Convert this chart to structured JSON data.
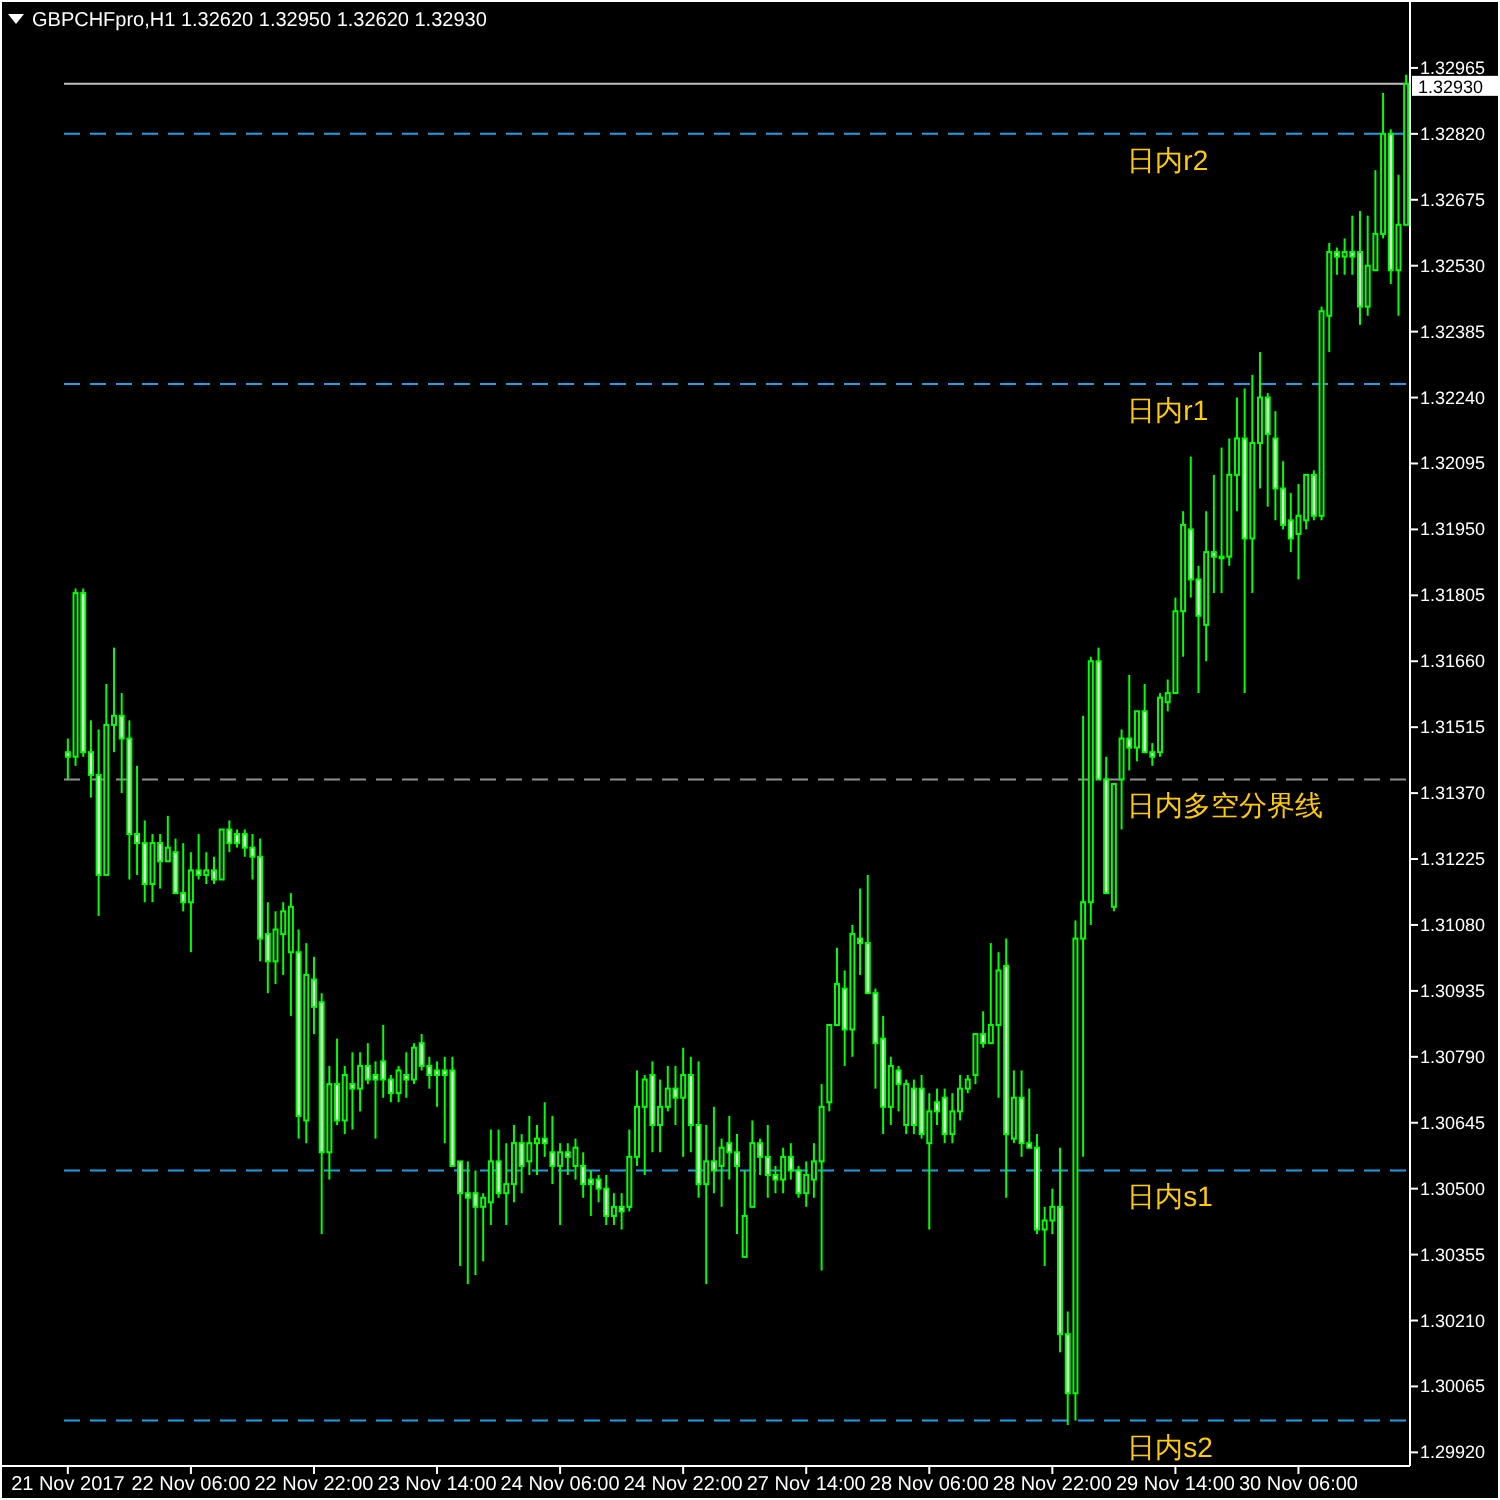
{
  "chart_data": {
    "type": "candlestick",
    "title": "GBPCHFpro,H1  1.32620 1.32950 1.32620 1.32930",
    "color": "#00ff00",
    "categories": [
      "21 Nov 2017",
      null,
      null,
      null,
      null,
      null,
      null,
      null,
      null,
      null,
      null,
      null,
      null,
      null,
      null,
      null,
      "22 Nov 06:00",
      null,
      null,
      null,
      null,
      null,
      null,
      null,
      null,
      null,
      null,
      null,
      null,
      null,
      null,
      null,
      "22 Nov 22:00",
      null,
      null,
      null,
      null,
      null,
      null,
      null,
      null,
      null,
      null,
      null,
      null,
      null,
      null,
      null,
      "23 Nov 14:00",
      null,
      null,
      null,
      null,
      null,
      null,
      null,
      null,
      null,
      null,
      null,
      null,
      null,
      null,
      null,
      "24 Nov 06:00",
      null,
      null,
      null,
      null,
      null,
      null,
      null,
      null,
      null,
      null,
      null,
      null,
      null,
      null,
      null,
      "24 Nov 22:00",
      null,
      null,
      null,
      null,
      null,
      null,
      null,
      null,
      null,
      null,
      null,
      null,
      null,
      null,
      null,
      "27 Nov 14:00",
      null,
      null,
      null,
      null,
      null,
      null,
      null,
      null,
      null,
      null,
      null,
      null,
      null,
      null,
      null,
      "28 Nov 06:00",
      null,
      null,
      null,
      null,
      null,
      null,
      null,
      null,
      null,
      null,
      null,
      null,
      null,
      null,
      null,
      "28 Nov 22:00",
      null,
      null,
      null,
      null,
      null,
      null,
      null,
      null,
      null,
      null,
      null,
      null,
      null,
      null,
      null,
      "29 Nov 14:00",
      null,
      null,
      null,
      null,
      null,
      null,
      null,
      null,
      null,
      null,
      null,
      null,
      null,
      null,
      null,
      "30 Nov 06:00",
      null,
      null,
      null,
      null,
      null,
      null,
      null,
      null,
      null,
      null,
      null,
      null,
      null,
      null
    ],
    "ohlc": [
      [
        1.3146,
        1.3149,
        1.314,
        1.3145
      ],
      [
        1.3145,
        1.3182,
        1.3143,
        1.3181
      ],
      [
        1.3181,
        1.3182,
        1.3145,
        1.3146
      ],
      [
        1.3146,
        1.3153,
        1.3136,
        1.3141
      ],
      [
        1.3141,
        1.3151,
        1.311,
        1.3119
      ],
      [
        1.3119,
        1.3161,
        1.3119,
        1.3152
      ],
      [
        1.3152,
        1.3169,
        1.3146,
        1.3154
      ],
      [
        1.3154,
        1.3159,
        1.3137,
        1.3149
      ],
      [
        1.3149,
        1.3153,
        1.3118,
        1.3128
      ],
      [
        1.3128,
        1.3143,
        1.3119,
        1.3126
      ],
      [
        1.3126,
        1.3131,
        1.3113,
        1.3117
      ],
      [
        1.3117,
        1.3128,
        1.3113,
        1.3126
      ],
      [
        1.3126,
        1.3128,
        1.3116,
        1.3122
      ],
      [
        1.3122,
        1.3132,
        1.3122,
        1.3125
      ],
      [
        1.3124,
        1.3127,
        1.3115,
        1.3115
      ],
      [
        1.3115,
        1.3126,
        1.3111,
        1.3113
      ],
      [
        1.3113,
        1.3124,
        1.3102,
        1.312
      ],
      [
        1.312,
        1.3128,
        1.3118,
        1.3119
      ],
      [
        1.3119,
        1.3124,
        1.3117,
        1.312
      ],
      [
        1.312,
        1.3123,
        1.3117,
        1.3118
      ],
      [
        1.3118,
        1.3129,
        1.3118,
        1.3129
      ],
      [
        1.3129,
        1.3131,
        1.3124,
        1.3126
      ],
      [
        1.3128,
        1.3129,
        1.3125,
        1.3126
      ],
      [
        1.3128,
        1.3129,
        1.3123,
        1.3125
      ],
      [
        1.3125,
        1.3128,
        1.3118,
        1.3123
      ],
      [
        1.3123,
        1.3127,
        1.31,
        1.3105
      ],
      [
        1.3106,
        1.3113,
        1.3093,
        1.31
      ],
      [
        1.31,
        1.3111,
        1.3095,
        1.3107
      ],
      [
        1.3106,
        1.3113,
        1.3097,
        1.3111
      ],
      [
        1.3102,
        1.3115,
        1.3088,
        1.3112
      ],
      [
        1.3102,
        1.3107,
        1.3061,
        1.3066
      ],
      [
        1.3065,
        1.3104,
        1.306,
        1.3097
      ],
      [
        1.3096,
        1.3101,
        1.3084,
        1.309
      ],
      [
        1.3091,
        1.3093,
        1.304,
        1.3058
      ],
      [
        1.3058,
        1.3077,
        1.3052,
        1.3073
      ],
      [
        1.3073,
        1.3083,
        1.3064,
        1.3065
      ],
      [
        1.3065,
        1.3077,
        1.3062,
        1.3075
      ],
      [
        1.3073,
        1.308,
        1.3063,
        1.3072
      ],
      [
        1.3072,
        1.308,
        1.3067,
        1.3077
      ],
      [
        1.3077,
        1.3082,
        1.3073,
        1.3074
      ],
      [
        1.3075,
        1.3078,
        1.3061,
        1.3074
      ],
      [
        1.3078,
        1.3086,
        1.307,
        1.3074
      ],
      [
        1.3074,
        1.3075,
        1.3069,
        1.3071
      ],
      [
        1.3071,
        1.3077,
        1.3069,
        1.3076
      ],
      [
        1.3075,
        1.308,
        1.307,
        1.3074
      ],
      [
        1.3074,
        1.3082,
        1.3073,
        1.3081
      ],
      [
        1.3082,
        1.3084,
        1.3076,
        1.3077
      ],
      [
        1.3077,
        1.3079,
        1.3072,
        1.3075
      ],
      [
        1.3076,
        1.3078,
        1.3068,
        1.3075
      ],
      [
        1.3076,
        1.3079,
        1.306,
        1.3075
      ],
      [
        1.3076,
        1.3079,
        1.3055,
        1.3055
      ],
      [
        1.3056,
        1.3056,
        1.3033,
        1.3049
      ],
      [
        1.3049,
        1.3056,
        1.3029,
        1.3048
      ],
      [
        1.3049,
        1.3054,
        1.3031,
        1.3046
      ],
      [
        1.3046,
        1.3049,
        1.3034,
        1.3048
      ],
      [
        1.3047,
        1.3063,
        1.3042,
        1.3056
      ],
      [
        1.3056,
        1.3063,
        1.3048,
        1.3049
      ],
      [
        1.3049,
        1.306,
        1.3042,
        1.3051
      ],
      [
        1.3051,
        1.3064,
        1.3047,
        1.306
      ],
      [
        1.306,
        1.3062,
        1.3049,
        1.3055
      ],
      [
        1.3056,
        1.3066,
        1.3053,
        1.306
      ],
      [
        1.306,
        1.3064,
        1.3053,
        1.3061
      ],
      [
        1.3061,
        1.3069,
        1.3057,
        1.306
      ],
      [
        1.3058,
        1.3066,
        1.3051,
        1.3055
      ],
      [
        1.3055,
        1.306,
        1.3042,
        1.3058
      ],
      [
        1.3058,
        1.306,
        1.3053,
        1.3057
      ],
      [
        1.3055,
        1.3061,
        1.3052,
        1.3059
      ],
      [
        1.3055,
        1.3058,
        1.3048,
        1.3051
      ],
      [
        1.3052,
        1.3054,
        1.3044,
        1.3051
      ],
      [
        1.3052,
        1.3053,
        1.3047,
        1.305
      ],
      [
        1.305,
        1.3053,
        1.3042,
        1.3044
      ],
      [
        1.3044,
        1.3049,
        1.3042,
        1.3046
      ],
      [
        1.3046,
        1.3049,
        1.3041,
        1.3045
      ],
      [
        1.3046,
        1.3063,
        1.3045,
        1.3057
      ],
      [
        1.3057,
        1.3076,
        1.3055,
        1.3068
      ],
      [
        1.3068,
        1.3075,
        1.3053,
        1.3074
      ],
      [
        1.3075,
        1.3078,
        1.3058,
        1.3064
      ],
      [
        1.3064,
        1.3074,
        1.3058,
        1.3068
      ],
      [
        1.3068,
        1.3077,
        1.3067,
        1.3072
      ],
      [
        1.3072,
        1.3077,
        1.3064,
        1.307
      ],
      [
        1.307,
        1.3081,
        1.3057,
        1.3075
      ],
      [
        1.3075,
        1.3079,
        1.3058,
        1.3064
      ],
      [
        1.3064,
        1.3078,
        1.3048,
        1.3051
      ],
      [
        1.3051,
        1.3064,
        1.3029,
        1.3056
      ],
      [
        1.3056,
        1.3068,
        1.3049,
        1.3054
      ],
      [
        1.3055,
        1.3061,
        1.3046,
        1.3059
      ],
      [
        1.306,
        1.3066,
        1.3052,
        1.3058
      ],
      [
        1.3058,
        1.3062,
        1.304,
        1.3055
      ],
      [
        1.3035,
        1.3054,
        1.3035,
        1.3044
      ],
      [
        1.3046,
        1.3065,
        1.3046,
        1.306
      ],
      [
        1.306,
        1.3061,
        1.3053,
        1.3057
      ],
      [
        1.3057,
        1.3064,
        1.3048,
        1.3053
      ],
      [
        1.3053,
        1.3055,
        1.3049,
        1.3052
      ],
      [
        1.3052,
        1.3059,
        1.3049,
        1.3057
      ],
      [
        1.3057,
        1.306,
        1.3052,
        1.3054
      ],
      [
        1.3054,
        1.3055,
        1.3048,
        1.3049
      ],
      [
        1.3049,
        1.3056,
        1.3046,
        1.3053
      ],
      [
        1.3052,
        1.306,
        1.3048,
        1.3056
      ],
      [
        1.3056,
        1.3073,
        1.3032,
        1.3068
      ],
      [
        1.3069,
        1.3086,
        1.3067,
        1.3086
      ],
      [
        1.3086,
        1.3103,
        1.3086,
        1.3095
      ],
      [
        1.3094,
        1.3098,
        1.3077,
        1.3085
      ],
      [
        1.3085,
        1.3108,
        1.3079,
        1.3106
      ],
      [
        1.3105,
        1.3116,
        1.3097,
        1.3104
      ],
      [
        1.3104,
        1.3119,
        1.3093,
        1.3093
      ],
      [
        1.3093,
        1.3094,
        1.3072,
        1.3082
      ],
      [
        1.3083,
        1.3088,
        1.3062,
        1.3068
      ],
      [
        1.3068,
        1.3079,
        1.3064,
        1.3077
      ],
      [
        1.3076,
        1.3077,
        1.3067,
        1.3073
      ],
      [
        1.3064,
        1.3074,
        1.3062,
        1.3073
      ],
      [
        1.3072,
        1.3074,
        1.3062,
        1.3064
      ],
      [
        1.3072,
        1.3075,
        1.3061,
        1.3062
      ],
      [
        1.306,
        1.3071,
        1.3041,
        1.3067
      ],
      [
        1.3069,
        1.3072,
        1.3064,
        1.3067
      ],
      [
        1.307,
        1.3072,
        1.306,
        1.3062
      ],
      [
        1.3062,
        1.3071,
        1.306,
        1.3067
      ],
      [
        1.3067,
        1.3075,
        1.3065,
        1.3072
      ],
      [
        1.3072,
        1.3075,
        1.3071,
        1.3074
      ],
      [
        1.3075,
        1.3084,
        1.3073,
        1.3084
      ],
      [
        1.3084,
        1.3089,
        1.3081,
        1.3082
      ],
      [
        1.3082,
        1.3104,
        1.3082,
        1.3086
      ],
      [
        1.3086,
        1.3102,
        1.307,
        1.3098
      ],
      [
        1.3099,
        1.3105,
        1.3048,
        1.3062
      ],
      [
        1.3061,
        1.3076,
        1.306,
        1.307
      ],
      [
        1.307,
        1.3076,
        1.3057,
        1.306
      ],
      [
        1.306,
        1.3072,
        1.3059,
        1.3059
      ],
      [
        1.3059,
        1.3062,
        1.304,
        1.3041
      ],
      [
        1.3041,
        1.3046,
        1.3033,
        1.3043
      ],
      [
        1.3043,
        1.305,
        1.304,
        1.3046
      ],
      [
        1.3046,
        1.3059,
        1.3014,
        1.3018
      ],
      [
        1.3018,
        1.3023,
        1.2998,
        1.3005
      ],
      [
        1.3005,
        1.3109,
        1.2999,
        1.3105
      ],
      [
        1.3105,
        1.3154,
        1.3057,
        1.3113
      ],
      [
        1.3113,
        1.3167,
        1.3108,
        1.3166
      ],
      [
        1.3166,
        1.3169,
        1.314,
        1.314
      ],
      [
        1.314,
        1.3145,
        1.3115,
        1.3115
      ],
      [
        1.3112,
        1.3139,
        1.3111,
        1.3139
      ],
      [
        1.314,
        1.3151,
        1.3129,
        1.3149
      ],
      [
        1.3149,
        1.3163,
        1.3142,
        1.3147
      ],
      [
        1.3147,
        1.3155,
        1.3144,
        1.3155
      ],
      [
        1.3155,
        1.3161,
        1.3146,
        1.3146
      ],
      [
        1.3146,
        1.3148,
        1.3143,
        1.3145
      ],
      [
        1.3146,
        1.3159,
        1.3145,
        1.3158
      ],
      [
        1.3157,
        1.3162,
        1.3155,
        1.3159
      ],
      [
        1.3159,
        1.318,
        1.3159,
        1.3177
      ],
      [
        1.3177,
        1.3199,
        1.3167,
        1.3196
      ],
      [
        1.3195,
        1.3211,
        1.318,
        1.3184
      ],
      [
        1.3184,
        1.3187,
        1.3159,
        1.3176
      ],
      [
        1.3174,
        1.3199,
        1.3166,
        1.319
      ],
      [
        1.319,
        1.3207,
        1.3181,
        1.3189
      ],
      [
        1.3189,
        1.3213,
        1.3181,
        1.3189
      ],
      [
        1.3189,
        1.3215,
        1.3187,
        1.3207
      ],
      [
        1.3207,
        1.3224,
        1.3199,
        1.3215
      ],
      [
        1.3215,
        1.3226,
        1.3159,
        1.3193
      ],
      [
        1.3193,
        1.3229,
        1.3181,
        1.3214
      ],
      [
        1.3214,
        1.3234,
        1.3204,
        1.3224
      ],
      [
        1.3224,
        1.3225,
        1.32,
        1.3216
      ],
      [
        1.3215,
        1.3221,
        1.3197,
        1.3204
      ],
      [
        1.3204,
        1.321,
        1.3195,
        1.3196
      ],
      [
        1.3197,
        1.3203,
        1.319,
        1.3193
      ],
      [
        1.3194,
        1.3205,
        1.3184,
        1.3198
      ],
      [
        1.3197,
        1.3207,
        1.3195,
        1.3207
      ],
      [
        1.3207,
        1.3208,
        1.3197,
        1.3198
      ],
      [
        1.3198,
        1.3244,
        1.3197,
        1.3243
      ],
      [
        1.3242,
        1.3258,
        1.3234,
        1.3256
      ],
      [
        1.3256,
        1.3257,
        1.3251,
        1.3255
      ],
      [
        1.3255,
        1.3259,
        1.3251,
        1.3256
      ],
      [
        1.3256,
        1.3264,
        1.3251,
        1.3255
      ],
      [
        1.3256,
        1.3265,
        1.324,
        1.3244
      ],
      [
        1.3244,
        1.3264,
        1.3242,
        1.3253
      ],
      [
        1.3252,
        1.3274,
        1.3252,
        1.326
      ],
      [
        1.326,
        1.3291,
        1.3259,
        1.3282
      ],
      [
        1.3282,
        1.3283,
        1.3249,
        1.3252
      ],
      [
        1.3252,
        1.3273,
        1.3242,
        1.3262
      ],
      [
        1.3262,
        1.3295,
        1.3262,
        1.3293
      ]
    ],
    "ylim": [
      1.2989,
      1.3311
    ],
    "yticks": [
      {
        "value": 1.32965,
        "label": "1.32965"
      },
      {
        "value": 1.3282,
        "label": "1.32820"
      },
      {
        "value": 1.32675,
        "label": "1.32675"
      },
      {
        "value": 1.3253,
        "label": "1.32530"
      },
      {
        "value": 1.32385,
        "label": "1.32385"
      },
      {
        "value": 1.3224,
        "label": "1.32240"
      },
      {
        "value": 1.32095,
        "label": "1.32095"
      },
      {
        "value": 1.3195,
        "label": "1.31950"
      },
      {
        "value": 1.31805,
        "label": "1.31805"
      },
      {
        "value": 1.3166,
        "label": "1.31660"
      },
      {
        "value": 1.31515,
        "label": "1.31515"
      },
      {
        "value": 1.3137,
        "label": "1.31370"
      },
      {
        "value": 1.31225,
        "label": "1.31225"
      },
      {
        "value": 1.3108,
        "label": "1.31080"
      },
      {
        "value": 1.30935,
        "label": "1.30935"
      },
      {
        "value": 1.3079,
        "label": "1.30790"
      },
      {
        "value": 1.30645,
        "label": "1.30645"
      },
      {
        "value": 1.305,
        "label": "1.30500"
      },
      {
        "value": 1.30355,
        "label": "1.30355"
      },
      {
        "value": 1.3021,
        "label": "1.30210"
      },
      {
        "value": 1.30065,
        "label": "1.30065"
      },
      {
        "value": 1.2992,
        "label": "1.29920"
      }
    ],
    "ref_lines": [
      {
        "axis": "y",
        "value": 1.3282,
        "label": "日内r2",
        "color": "#1e9ee6",
        "line_style": "dashed"
      },
      {
        "axis": "y",
        "value": 1.3227,
        "label": "日内r1",
        "color": "#1e9ee6",
        "line_style": "dashed"
      },
      {
        "axis": "y",
        "value": 1.314,
        "label": "日内多空分界线",
        "color": "#909090",
        "line_style": "dashed"
      },
      {
        "axis": "y",
        "value": 1.3054,
        "label": "日内s1",
        "color": "#1e9ee6",
        "line_style": "dashed"
      },
      {
        "axis": "y",
        "value": 1.2999,
        "label": "日内s2",
        "color": "#1e9ee6",
        "line_style": "dashed"
      },
      {
        "axis": "y",
        "value": 1.3293,
        "label": "1.32930",
        "color": "#c0c0c0",
        "line_style": "solid"
      }
    ]
  }
}
